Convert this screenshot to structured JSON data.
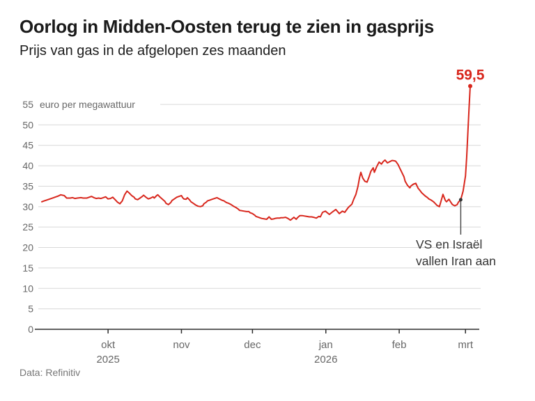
{
  "chart_data": {
    "type": "line",
    "title": "Oorlog in Midden-Oosten terug te zien in gasprijs",
    "subtitle": "Prijs van gas in de afgelopen zes maanden",
    "source": "Data: Refinitiv",
    "unit_label": "euro per megawattuur",
    "ylim": [
      0,
      55
    ],
    "y_ticks": [
      0,
      5,
      10,
      15,
      20,
      25,
      30,
      35,
      40,
      45,
      50,
      55
    ],
    "x_start": "2025-09-03",
    "x_end": "2026-03-03",
    "x_domain_days": 181,
    "x_ticks": [
      {
        "label": "okt",
        "year": "2025",
        "day": 28
      },
      {
        "label": "nov",
        "day": 59
      },
      {
        "label": "dec",
        "day": 89
      },
      {
        "label": "jan",
        "year": "2026",
        "day": 120
      },
      {
        "label": "feb",
        "day": 151
      },
      {
        "label": "mrt",
        "day": 179
      }
    ],
    "grid": true,
    "legend": false,
    "end_label": "59,5",
    "end_value": 59.5,
    "annotation": {
      "label_lines": [
        "VS en Israël",
        "vallen Iran aan"
      ],
      "day": 177,
      "value": 31.7
    },
    "colors": {
      "accent": "#d8261c",
      "grid": "#d8d8d8",
      "axis": "#2b2b2b",
      "tick_label": "#666666",
      "annotation_line": "#4d4d4d",
      "annotation_text": "#333333",
      "text": "#1a1a1a",
      "source": "#757575"
    },
    "series": [
      {
        "name": "Gasprijs",
        "color": "#d8261c",
        "points": [
          [
            0,
            31.2
          ],
          [
            1,
            31.4
          ],
          [
            2,
            31.6
          ],
          [
            3.5,
            31.9
          ],
          [
            5,
            32.2
          ],
          [
            6,
            32.4
          ],
          [
            7,
            32.6
          ],
          [
            8,
            32.9
          ],
          [
            9.5,
            32.7
          ],
          [
            10.5,
            32.1
          ],
          [
            12,
            32.1
          ],
          [
            13,
            32.2
          ],
          [
            14,
            32
          ],
          [
            15,
            32.1
          ],
          [
            16.5,
            32.2
          ],
          [
            17.5,
            32.1
          ],
          [
            19,
            32.1
          ],
          [
            20,
            32.3
          ],
          [
            21,
            32.5
          ],
          [
            22,
            32.2
          ],
          [
            23,
            32
          ],
          [
            24,
            32.1
          ],
          [
            25,
            32
          ],
          [
            26,
            32.2
          ],
          [
            27,
            32.4
          ],
          [
            28,
            31.9
          ],
          [
            29,
            32
          ],
          [
            30,
            32.3
          ],
          [
            31,
            31.7
          ],
          [
            32,
            31.1
          ],
          [
            33,
            30.7
          ],
          [
            34,
            31.4
          ],
          [
            35,
            32.9
          ],
          [
            36,
            33.8
          ],
          [
            37,
            33.3
          ],
          [
            38,
            32.7
          ],
          [
            39,
            32.3
          ],
          [
            39.5,
            31.9
          ],
          [
            40.5,
            31.7
          ],
          [
            41.5,
            32.1
          ],
          [
            42.5,
            32.5
          ],
          [
            43,
            32.8
          ],
          [
            44,
            32.3
          ],
          [
            45,
            31.9
          ],
          [
            46,
            32.1
          ],
          [
            47,
            32.4
          ],
          [
            47.5,
            32.1
          ],
          [
            48.5,
            32.7
          ],
          [
            49,
            32.9
          ],
          [
            50,
            32.3
          ],
          [
            51,
            31.8
          ],
          [
            52,
            31.3
          ],
          [
            52.5,
            30.8
          ],
          [
            53.5,
            30.5
          ],
          [
            54.5,
            31
          ],
          [
            55,
            31.5
          ],
          [
            56,
            31.9
          ],
          [
            57,
            32.3
          ],
          [
            58,
            32.5
          ],
          [
            59,
            32.7
          ],
          [
            59.5,
            32.2
          ],
          [
            60,
            31.9
          ],
          [
            61,
            31.8
          ],
          [
            61.5,
            32.2
          ],
          [
            62.5,
            31.6
          ],
          [
            63,
            31.2
          ],
          [
            64,
            30.8
          ],
          [
            65,
            30.4
          ],
          [
            66,
            30.1
          ],
          [
            67,
            30
          ],
          [
            68,
            30.2
          ],
          [
            68.5,
            30.7
          ],
          [
            69.5,
            31.1
          ],
          [
            70,
            31.4
          ],
          [
            71,
            31.6
          ],
          [
            72,
            31.8
          ],
          [
            73,
            32
          ],
          [
            74,
            32.2
          ],
          [
            75,
            31.9
          ],
          [
            76,
            31.6
          ],
          [
            77,
            31.4
          ],
          [
            77.5,
            31.2
          ],
          [
            78,
            31
          ],
          [
            79,
            30.8
          ],
          [
            80,
            30.5
          ],
          [
            81,
            30.1
          ],
          [
            82,
            29.8
          ],
          [
            83,
            29.4
          ],
          [
            83.5,
            29.1
          ],
          [
            84.5,
            29
          ],
          [
            85.5,
            28.9
          ],
          [
            86.5,
            28.8
          ],
          [
            87.5,
            28.8
          ],
          [
            88,
            28.5
          ],
          [
            89,
            28.3
          ],
          [
            90,
            27.9
          ],
          [
            90.5,
            27.6
          ],
          [
            91.5,
            27.4
          ],
          [
            92.5,
            27.2
          ],
          [
            93,
            27.1
          ],
          [
            94,
            27
          ],
          [
            95,
            26.9
          ],
          [
            96,
            27.5
          ],
          [
            97,
            26.9
          ],
          [
            98,
            27
          ],
          [
            98.5,
            27.1
          ],
          [
            99.5,
            27.2
          ],
          [
            100.5,
            27.2
          ],
          [
            101,
            27.3
          ],
          [
            102,
            27.3
          ],
          [
            103,
            27.4
          ],
          [
            104,
            27.1
          ],
          [
            105,
            26.7
          ],
          [
            105.5,
            26.9
          ],
          [
            106.5,
            27.4
          ],
          [
            107.5,
            26.9
          ],
          [
            108,
            27.3
          ],
          [
            109,
            27.8
          ],
          [
            110,
            27.8
          ],
          [
            111,
            27.7
          ],
          [
            112,
            27.6
          ],
          [
            113,
            27.5
          ],
          [
            114,
            27.5
          ],
          [
            114.8,
            27.4
          ],
          [
            116,
            27.2
          ],
          [
            117,
            27.6
          ],
          [
            117.7,
            27.5
          ],
          [
            118.6,
            28.6
          ],
          [
            119.8,
            28.9
          ],
          [
            121.5,
            28.1
          ],
          [
            123,
            28.8
          ],
          [
            124.2,
            29.3
          ],
          [
            125.7,
            28.3
          ],
          [
            127,
            28.9
          ],
          [
            128,
            28.6
          ],
          [
            129.5,
            29.8
          ],
          [
            131,
            30.6
          ],
          [
            131.8,
            31.8
          ],
          [
            132.7,
            33
          ],
          [
            133.6,
            35
          ],
          [
            134.2,
            37
          ],
          [
            134.8,
            38.4
          ],
          [
            135.6,
            37
          ],
          [
            136.5,
            36.2
          ],
          [
            137.4,
            36
          ],
          [
            138.2,
            37.2
          ],
          [
            139,
            38.6
          ],
          [
            140,
            39.5
          ],
          [
            140.5,
            38.4
          ],
          [
            141.5,
            39.8
          ],
          [
            142.5,
            40.9
          ],
          [
            143.5,
            40.4
          ],
          [
            144.2,
            41
          ],
          [
            145,
            41.4
          ],
          [
            146,
            40.7
          ],
          [
            147,
            41
          ],
          [
            148,
            41.3
          ],
          [
            149,
            41.2
          ],
          [
            149.5,
            41.1
          ],
          [
            150.5,
            40.3
          ],
          [
            151,
            39.7
          ],
          [
            152,
            38.5
          ],
          [
            153,
            37.3
          ],
          [
            153.5,
            36.2
          ],
          [
            154.5,
            35.2
          ],
          [
            155.5,
            34.6
          ],
          [
            156,
            35.1
          ],
          [
            157,
            35.5
          ],
          [
            158,
            35.7
          ],
          [
            159,
            34.5
          ],
          [
            160,
            33.8
          ],
          [
            160.5,
            33.4
          ],
          [
            162,
            32.6
          ],
          [
            163,
            32.2
          ],
          [
            163.5,
            31.9
          ],
          [
            164.5,
            31.6
          ],
          [
            165.5,
            31.2
          ],
          [
            166,
            30.9
          ],
          [
            167,
            30.3
          ],
          [
            168,
            30
          ],
          [
            169,
            32
          ],
          [
            169.5,
            33
          ],
          [
            170.5,
            31.5
          ],
          [
            171,
            31.2
          ],
          [
            172,
            31.8
          ],
          [
            173,
            30.9
          ],
          [
            173.5,
            30.5
          ],
          [
            174.5,
            30.2
          ],
          [
            175.5,
            30.5
          ],
          [
            176,
            31.1
          ],
          [
            177,
            31.7
          ],
          [
            178,
            33.8
          ],
          [
            179,
            37.5
          ],
          [
            179.5,
            42
          ],
          [
            180,
            48
          ],
          [
            180.5,
            54
          ],
          [
            181,
            59.5
          ]
        ]
      }
    ]
  }
}
